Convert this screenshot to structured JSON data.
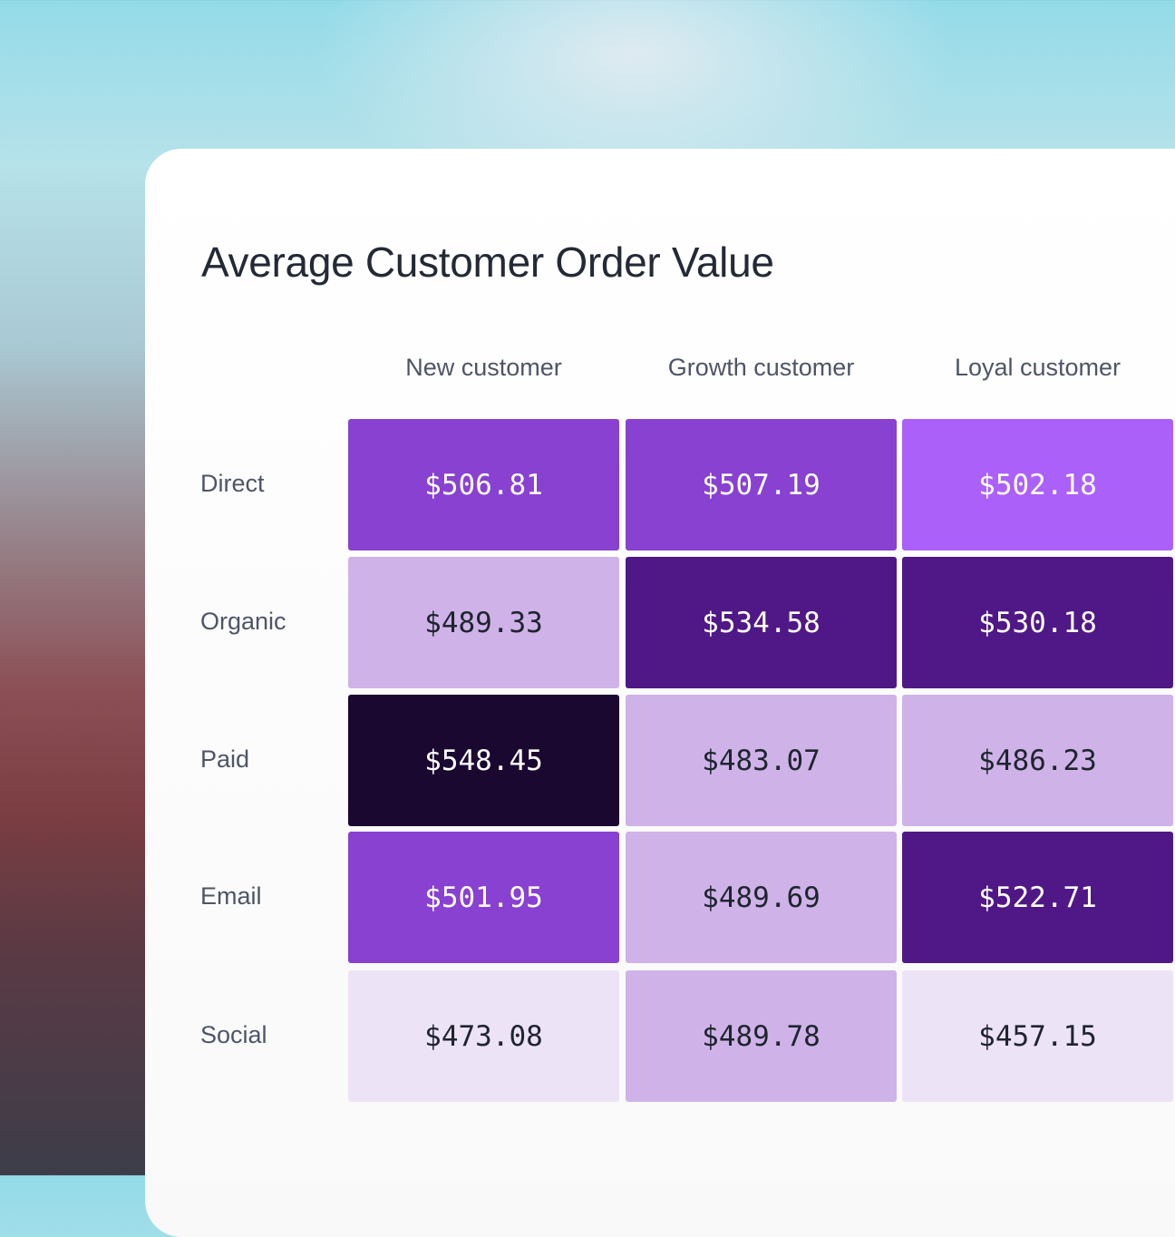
{
  "chart_data": {
    "type": "heatmap",
    "title": "Average Customer Order Value",
    "columns": [
      "New customer",
      "Growth customer",
      "Loyal customer"
    ],
    "rows": [
      "Direct",
      "Organic",
      "Paid",
      "Email",
      "Social"
    ],
    "values": [
      [
        506.81,
        507.19,
        502.18
      ],
      [
        489.33,
        534.58,
        530.18
      ],
      [
        548.45,
        483.07,
        486.23
      ],
      [
        501.95,
        489.69,
        522.71
      ],
      [
        473.08,
        489.78,
        457.15
      ]
    ],
    "labels": [
      [
        "$506.81",
        "$507.19",
        "$502.18"
      ],
      [
        "$489.33",
        "$534.58",
        "$530.18"
      ],
      [
        "$548.45",
        "$483.07",
        "$486.23"
      ],
      [
        "$501.95",
        "$489.69",
        "$522.71"
      ],
      [
        "$473.08",
        "$489.78",
        "$457.15"
      ]
    ],
    "colors": [
      [
        "#8841d0",
        "#8841d0",
        "#ab60fa"
      ],
      [
        "#cfb3e8",
        "#501886",
        "#501886"
      ],
      [
        "#1b0830",
        "#cfb3e8",
        "#cfb3e8"
      ],
      [
        "#8841d0",
        "#cfb3e8",
        "#501886"
      ],
      [
        "#ede3f6",
        "#cfb3e8",
        "#ede3f6"
      ]
    ],
    "text_colors": {
      "light": "#ffffff",
      "dark": "#1f2430"
    }
  }
}
